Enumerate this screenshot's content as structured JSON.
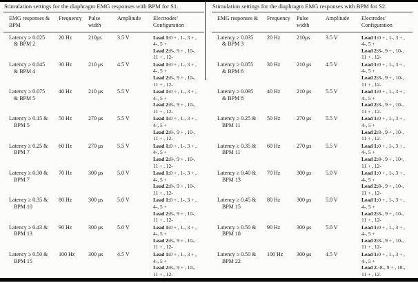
{
  "page": {
    "background": "#fcfcfa",
    "text_color": "#1d1d1d",
    "rule_color": "#050505"
  },
  "tables": [
    {
      "id": "s1",
      "title": "Stimulation settings for the diaphragm EMG responses with BPM for S1.",
      "headers": [
        [
          "EMG responses &",
          "BPM"
        ],
        [
          "Frequency"
        ],
        [
          "Pulse",
          "width"
        ],
        [
          "Amplitude"
        ],
        [
          "Electrodes’",
          "Configuration"
        ]
      ],
      "rows": [
        {
          "emg": [
            "Latency ≥ 0.025",
            "& BPM 2"
          ],
          "frequency": "20 Hz",
          "pulse_width": "210μs",
          "amplitude": "3.5 V",
          "config": [
            {
              "b": "Lead 1:",
              "t": "0 + , 1-, 3 + ,"
            },
            {
              "b": "",
              "t": "4-, 5 +"
            },
            {
              "b": "Lead 2:",
              "t": "8-, 9 + , 10-,"
            },
            {
              "b": "",
              "t": "11 + , 12-"
            }
          ]
        },
        {
          "emg": [
            "Latency ≥ 0.045",
            "& BPM 4"
          ],
          "frequency": "30 Hz",
          "pulse_width": "210 μs",
          "amplitude": "4.5 V",
          "config": [
            {
              "b": "Lead 1:",
              "t": "0 + , 1-, 3 + ,"
            },
            {
              "b": "",
              "t": "4-, 5 +"
            },
            {
              "b": "Lead 2:",
              "t": "8-, 9 + , 10-,"
            },
            {
              "b": "",
              "t": "11 + , 12-"
            }
          ]
        },
        {
          "emg": [
            "Latency ≥ 0.075",
            "& BPM 5"
          ],
          "frequency": "40 Hz",
          "pulse_width": "210 μs",
          "amplitude": "5.5 V",
          "config": [
            {
              "b": "Lead 1:",
              "t": "0 + , 1-, 3 + ,"
            },
            {
              "b": "",
              "t": "4-, 5 +"
            },
            {
              "b": "Lead 2:",
              "t": "8-, 9 + , 10-,"
            },
            {
              "b": "",
              "t": "11 + , 12-"
            }
          ]
        },
        {
          "emg": [
            "Latency ≥ 0.15 &",
            "BPM 5"
          ],
          "frequency": "50 Hz",
          "pulse_width": "270 μs",
          "amplitude": "5.5 V",
          "config": [
            {
              "b": "Lead 1:",
              "t": "0 + , 1-, 3 + ,"
            },
            {
              "b": "",
              "t": "4-, 5 +"
            },
            {
              "b": "Lead 2:",
              "t": "8-, 9 + , 10-,"
            },
            {
              "b": "",
              "t": "11 + , 12-"
            }
          ]
        },
        {
          "emg": [
            "Latency ≥ 0.25 &",
            "BPM 7"
          ],
          "frequency": "60 Hz",
          "pulse_width": "270 μs",
          "amplitude": "5.5 V",
          "config": [
            {
              "b": "Lead 1:",
              "t": "0 + , 1-, 3 + ,"
            },
            {
              "b": "",
              "t": "4-, 5 +"
            },
            {
              "b": "Lead 2:",
              "t": "8-, 9 + , 10-,"
            },
            {
              "b": "",
              "t": "11 + , 12-"
            }
          ]
        },
        {
          "emg": [
            "Latency ≥ 0.30 &",
            "BPM 7"
          ],
          "frequency": "70 Hz",
          "pulse_width": "300 μs",
          "amplitude": "5.0 V",
          "config": [
            {
              "b": "Lead 1:",
              "t": "0 + , 1-, 3 + ,"
            },
            {
              "b": "",
              "t": "4-, 5 +"
            },
            {
              "b": "Lead 2:",
              "t": "8-, 9 + , 10-,"
            },
            {
              "b": "",
              "t": "11 + , 12-"
            }
          ]
        },
        {
          "emg": [
            "Latency ≥ 0.35 &",
            "BPM 10"
          ],
          "frequency": "80 Hz",
          "pulse_width": "300 μs",
          "amplitude": "5.0 V",
          "config": [
            {
              "b": "Lead 1:",
              "t": "0 + , 1-, 3 + ,"
            },
            {
              "b": "",
              "t": "4-, 5 +"
            },
            {
              "b": "Lead 2:",
              "t": "8-, 9 + , 10-,"
            },
            {
              "b": "",
              "t": "11 + , 12-"
            }
          ]
        },
        {
          "emg": [
            "Latency ≥ 0.43 &",
            "BPM 13"
          ],
          "frequency": "90 Hz",
          "pulse_width": "300 μs",
          "amplitude": "5.0 V",
          "config": [
            {
              "b": "Lead 1:",
              "t": "0 + , 1-, 3 + ,"
            },
            {
              "b": "",
              "t": "4-, 5 +"
            },
            {
              "b": "Lead 2:",
              "t": "8-, 9 + , 10-,"
            },
            {
              "b": "",
              "t": "11 + , 12-"
            }
          ]
        },
        {
          "emg": [
            "Latency ≥ 0.50 &",
            "BPM 15"
          ],
          "frequency": "100 Hz",
          "pulse_width": "300 μs",
          "amplitude": "4.5 V",
          "config": [
            {
              "b": "Lead 1:",
              "t": "0 + , 1-, 3 + ,"
            },
            {
              "b": "",
              "t": "4-, 5 +"
            },
            {
              "b": "Lead 2:",
              "t": "8-, 9 + , 10-,"
            },
            {
              "b": "",
              "t": "11 + , 12-"
            }
          ]
        }
      ]
    },
    {
      "id": "s2",
      "title": "Stimulation settings for the diaphragm EMG responses with BPM for S2.",
      "headers": [
        [
          "EMG responses &"
        ],
        [
          "Frequency"
        ],
        [
          "Pulse",
          "width"
        ],
        [
          "Amplitude"
        ],
        [
          "Electrodes’",
          "Configuration"
        ]
      ],
      "rows": [
        {
          "emg": [
            "Latency ≥ 0.035",
            "& BPM 3"
          ],
          "frequency": "20 Hz",
          "pulse_width": "210μs",
          "amplitude": "3.5 V",
          "config": [
            {
              "b": "Lead 1:",
              "t": "0 + , 1-, 3 + ,"
            },
            {
              "b": "",
              "t": "4-, 5 +"
            },
            {
              "b": "Lead 2:",
              "t": "8-, 9 + , 10-,"
            },
            {
              "b": "",
              "t": "11 + , 12-"
            }
          ]
        },
        {
          "emg": [
            "Latency ≥ 0.055",
            "& BPM 6"
          ],
          "frequency": "30 Hz",
          "pulse_width": "210 μs",
          "amplitude": "4.5 V",
          "config": [
            {
              "b": "Lead 1:",
              "t": "0 + , 1-, 3 + ,"
            },
            {
              "b": "",
              "t": "4-, 5 +"
            },
            {
              "b": "Lead 2:",
              "t": "8-, 9 + , 10-,"
            },
            {
              "b": "",
              "t": "11 + , 12-"
            }
          ]
        },
        {
          "emg": [
            "Latency ≥ 0.095",
            "& BPM 8"
          ],
          "frequency": "40 Hz",
          "pulse_width": "210 μs",
          "amplitude": "5.5 V",
          "config": [
            {
              "b": "Lead 1:",
              "t": "0 + , 1-, 3 + ,"
            },
            {
              "b": "",
              "t": "4-, 5 +"
            },
            {
              "b": "Lead 2:",
              "t": "8-, 9 + , 10-,"
            },
            {
              "b": "",
              "t": "11 + , 12-"
            }
          ]
        },
        {
          "emg": [
            "Latency ≥ 0.25 &",
            "BPM 11"
          ],
          "frequency": "50 Hz",
          "pulse_width": "270 μs",
          "amplitude": "5.5 V",
          "config": [
            {
              "b": "Lead 1:",
              "t": "0 + , 1-, 3 + ,"
            },
            {
              "b": "",
              "t": "4-, 5 +"
            },
            {
              "b": "Lead 2:",
              "t": "8-, 9 + , 10-,"
            },
            {
              "b": "",
              "t": "11 + , 12-"
            }
          ]
        },
        {
          "emg": [
            "Latency ≥ 0.35 &",
            "BPM 11"
          ],
          "frequency": "60 Hz",
          "pulse_width": "270 μs",
          "amplitude": "5.5 V",
          "config": [
            {
              "b": "Lead 1:",
              "t": "0 + , 1-, 3 + ,"
            },
            {
              "b": "",
              "t": "4-, 5 +"
            },
            {
              "b": "Lead 2:",
              "t": "8-, 9 + , 10-,"
            },
            {
              "b": "",
              "t": "11 + , 12-"
            }
          ]
        },
        {
          "emg": [
            "Latency ≥ 0.40 &",
            "BPM 13"
          ],
          "frequency": "70 Hz",
          "pulse_width": "300 μs",
          "amplitude": "5.0 V",
          "config": [
            {
              "b": "Lead 1:",
              "t": "0 + , 1-, 3 + ,"
            },
            {
              "b": "",
              "t": "4-, 5 +"
            },
            {
              "b": "Lead 2:",
              "t": "8-, 9 + , 10-,"
            },
            {
              "b": "",
              "t": "11 + , 12-"
            }
          ]
        },
        {
          "emg": [
            "Latency ≥ 0.45 &",
            "BPM 15"
          ],
          "frequency": "80 Hz",
          "pulse_width": "300 μs",
          "amplitude": "5.0 V",
          "config": [
            {
              "b": "Lead 1:",
              "t": "0 + , 1-, 3 + ,"
            },
            {
              "b": "",
              "t": "4-, 5 +"
            },
            {
              "b": "Lead 2:",
              "t": "8-, 9 + , 10-,"
            },
            {
              "b": "",
              "t": "11 + , 12-"
            }
          ]
        },
        {
          "emg": [
            "Latency ≥ 0.50 &",
            "BPM 18"
          ],
          "frequency": "90 Hz",
          "pulse_width": "300 μs",
          "amplitude": "5.0 V",
          "config": [
            {
              "b": "Lead 1:",
              "t": "0 + , 1-, 3 + ,"
            },
            {
              "b": "",
              "t": "4-, 5 +"
            },
            {
              "b": "Lead 2:",
              "t": "8-, 9 + , 10-,"
            },
            {
              "b": "",
              "t": "11 + , 12-"
            }
          ]
        },
        {
          "emg": [
            "Latency ≥ 0.50 &",
            "BPM 22"
          ],
          "frequency": "100 Hz",
          "pulse_width": "300 μs",
          "amplitude": "4.5 V",
          "config": [
            {
              "b": "Lead 1:",
              "t": "0 + , 1-, 3 + ,"
            },
            {
              "b": "",
              "t": "4-, 5 +"
            },
            {
              "b": "Lead 2-:",
              "t": "8-, 9 + , 10-,"
            },
            {
              "b": "",
              "t": "11 + , 12-"
            }
          ]
        }
      ]
    }
  ]
}
